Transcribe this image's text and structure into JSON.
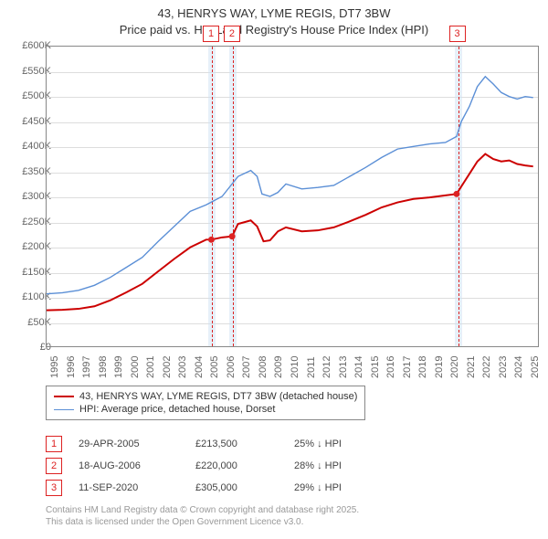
{
  "title_line1": "43, HENRYS WAY, LYME REGIS, DT7 3BW",
  "title_line2": "Price paid vs. HM Land Registry's House Price Index (HPI)",
  "colors": {
    "series_property": "#cc0000",
    "series_hpi": "#5b8fd6",
    "grid": "#dddddd",
    "axis": "#888888",
    "band": "#cfe2f3",
    "marker_border": "#cc0000",
    "text_muted": "#999999"
  },
  "chart": {
    "type": "line",
    "x_domain": [
      1995,
      2025.8
    ],
    "y_domain": [
      0,
      600000
    ],
    "y_ticks": [
      0,
      50000,
      100000,
      150000,
      200000,
      250000,
      300000,
      350000,
      400000,
      450000,
      500000,
      550000,
      600000
    ],
    "y_tick_labels": [
      "£0",
      "£50K",
      "£100K",
      "£150K",
      "£200K",
      "£250K",
      "£300K",
      "£350K",
      "£400K",
      "£450K",
      "£500K",
      "£550K",
      "£600K"
    ],
    "x_ticks": [
      1995,
      1996,
      1997,
      1998,
      1999,
      2000,
      2001,
      2002,
      2003,
      2004,
      2005,
      2006,
      2007,
      2008,
      2009,
      2010,
      2011,
      2012,
      2013,
      2014,
      2015,
      2016,
      2017,
      2018,
      2019,
      2020,
      2021,
      2022,
      2023,
      2024,
      2025
    ],
    "line_width_property": 2.0,
    "line_width_hpi": 1.4,
    "series_property": [
      [
        1995,
        72000
      ],
      [
        1996,
        73000
      ],
      [
        1997,
        75000
      ],
      [
        1998,
        80000
      ],
      [
        1999,
        92000
      ],
      [
        2000,
        108000
      ],
      [
        2001,
        125000
      ],
      [
        2002,
        150000
      ],
      [
        2003,
        175000
      ],
      [
        2004,
        198000
      ],
      [
        2005,
        213500
      ],
      [
        2005.33,
        213500
      ],
      [
        2006,
        218000
      ],
      [
        2006.63,
        220000
      ],
      [
        2007,
        245000
      ],
      [
        2007.8,
        252000
      ],
      [
        2008.2,
        240000
      ],
      [
        2008.6,
        210000
      ],
      [
        2009,
        212000
      ],
      [
        2009.5,
        230000
      ],
      [
        2010,
        238000
      ],
      [
        2011,
        230000
      ],
      [
        2012,
        232000
      ],
      [
        2013,
        238000
      ],
      [
        2014,
        250000
      ],
      [
        2015,
        263000
      ],
      [
        2016,
        278000
      ],
      [
        2017,
        288000
      ],
      [
        2018,
        295000
      ],
      [
        2019,
        298000
      ],
      [
        2020,
        302000
      ],
      [
        2020.7,
        305000
      ],
      [
        2021,
        320000
      ],
      [
        2021.5,
        345000
      ],
      [
        2022,
        370000
      ],
      [
        2022.5,
        385000
      ],
      [
        2023,
        375000
      ],
      [
        2023.5,
        370000
      ],
      [
        2024,
        372000
      ],
      [
        2024.5,
        365000
      ],
      [
        2025,
        362000
      ],
      [
        2025.5,
        360000
      ]
    ],
    "series_hpi": [
      [
        1995,
        105000
      ],
      [
        1996,
        107000
      ],
      [
        1997,
        112000
      ],
      [
        1998,
        122000
      ],
      [
        1999,
        138000
      ],
      [
        2000,
        158000
      ],
      [
        2001,
        178000
      ],
      [
        2002,
        210000
      ],
      [
        2003,
        240000
      ],
      [
        2004,
        270000
      ],
      [
        2005,
        283000
      ],
      [
        2006,
        300000
      ],
      [
        2007,
        340000
      ],
      [
        2007.8,
        352000
      ],
      [
        2008.2,
        340000
      ],
      [
        2008.5,
        305000
      ],
      [
        2009,
        300000
      ],
      [
        2009.5,
        308000
      ],
      [
        2010,
        325000
      ],
      [
        2011,
        315000
      ],
      [
        2012,
        318000
      ],
      [
        2013,
        322000
      ],
      [
        2014,
        340000
      ],
      [
        2015,
        358000
      ],
      [
        2016,
        378000
      ],
      [
        2017,
        395000
      ],
      [
        2018,
        400000
      ],
      [
        2019,
        405000
      ],
      [
        2020,
        408000
      ],
      [
        2020.7,
        420000
      ],
      [
        2021,
        450000
      ],
      [
        2021.5,
        480000
      ],
      [
        2022,
        520000
      ],
      [
        2022.5,
        540000
      ],
      [
        2023,
        525000
      ],
      [
        2023.5,
        508000
      ],
      [
        2024,
        500000
      ],
      [
        2024.5,
        495000
      ],
      [
        2025,
        500000
      ],
      [
        2025.5,
        498000
      ]
    ],
    "sale_points": [
      {
        "x": 2005.33,
        "y": 213500
      },
      {
        "x": 2006.63,
        "y": 220000
      },
      {
        "x": 2020.7,
        "y": 305000
      }
    ]
  },
  "markers": [
    {
      "num": "1",
      "x": 2005.33
    },
    {
      "num": "2",
      "x": 2006.63
    },
    {
      "num": "3",
      "x": 2020.7
    }
  ],
  "legend": {
    "row1": "43, HENRYS WAY, LYME REGIS, DT7 3BW (detached house)",
    "row2": "HPI: Average price, detached house, Dorset"
  },
  "datapoints": [
    {
      "num": "1",
      "date": "29-APR-2005",
      "price": "£213,500",
      "pct": "25% ↓ HPI"
    },
    {
      "num": "2",
      "date": "18-AUG-2006",
      "price": "£220,000",
      "pct": "28% ↓ HPI"
    },
    {
      "num": "3",
      "date": "11-SEP-2020",
      "price": "£305,000",
      "pct": "29% ↓ HPI"
    }
  ],
  "footer_line1": "Contains HM Land Registry data © Crown copyright and database right 2025.",
  "footer_line2": "This data is licensed under the Open Government Licence v3.0."
}
